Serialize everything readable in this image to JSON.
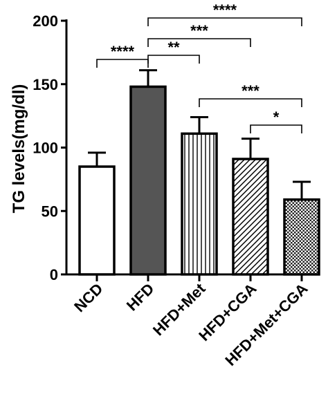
{
  "chart_data": {
    "type": "bar",
    "title": "",
    "xlabel": "",
    "ylabel": "TG levels(mg/dl)",
    "ylim": [
      0,
      200
    ],
    "yticks": [
      "0",
      "50",
      "100",
      "150",
      "200"
    ],
    "categories": [
      "NCD",
      "HFD",
      "HFD+Met",
      "HFD+CGA",
      "HFD+Met+CGA"
    ],
    "values": [
      85,
      148,
      111,
      91,
      59
    ],
    "errors": [
      11,
      13,
      13,
      16,
      14
    ],
    "fills": [
      "white",
      "dark-gray",
      "vertical-lines",
      "diagonal-lines",
      "checkered"
    ],
    "colors": {
      "dark_fill": "#555555",
      "stroke": "#000000"
    },
    "grid": false,
    "significance": [
      {
        "from": "NCD",
        "to": "HFD",
        "label": "****"
      },
      {
        "from": "HFD",
        "to": "HFD+Met",
        "label": "**"
      },
      {
        "from": "HFD",
        "to": "HFD+CGA",
        "label": "***"
      },
      {
        "from": "HFD",
        "to": "HFD+Met+CGA",
        "label": "****"
      },
      {
        "from": "HFD+Met",
        "to": "HFD+Met+CGA",
        "label": "***"
      },
      {
        "from": "HFD+CGA",
        "to": "HFD+Met+CGA",
        "label": "*"
      }
    ]
  }
}
